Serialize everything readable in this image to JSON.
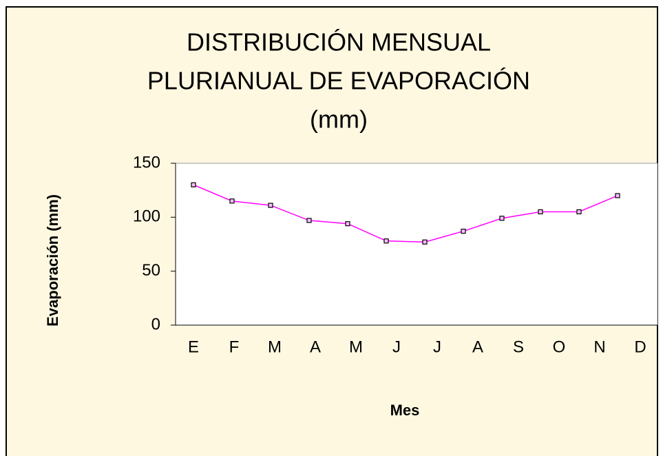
{
  "chart_data": {
    "type": "line",
    "title": [
      "DISTRIBUCIÓN MENSUAL",
      "PLURIANUAL DE EVAPORACIÓN",
      "(mm)"
    ],
    "x_label": "Mes",
    "y_label": "Evaporación (mm)",
    "categories": [
      "E",
      "F",
      "M",
      "A",
      "M",
      "J",
      "J",
      "A",
      "S",
      "O",
      "N",
      "D"
    ],
    "values": [
      130,
      115,
      111,
      97,
      94,
      78,
      77,
      87,
      99,
      105,
      105,
      120
    ],
    "color": "#ff00ff",
    "ylim": [
      0,
      150
    ],
    "yticks": [
      0,
      50,
      100,
      150
    ],
    "grid": false
  }
}
